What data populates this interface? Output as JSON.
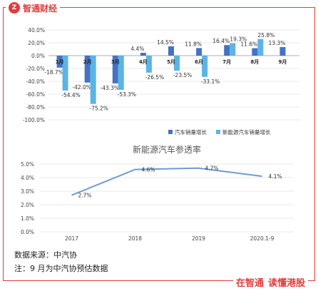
{
  "header": {
    "logo_mark": "Z",
    "brand": "智通财经"
  },
  "chart_data": [
    {
      "type": "bar",
      "title": "",
      "categories": [
        "1月",
        "2月",
        "3月",
        "4月",
        "5月",
        "6月",
        "7月",
        "8月",
        "9月"
      ],
      "series": [
        {
          "name": "汽车销量增长",
          "color": "#4472c4",
          "values": [
            -18.7,
            -42.0,
            -43.3,
            4.4,
            14.5,
            11.8,
            16.4,
            11.6,
            13.3
          ],
          "labels": [
            "-18.7%",
            "-42.0%",
            "-43.3%",
            "4.4%",
            "14.5%",
            "11.8%",
            "16.4%",
            "11.6%",
            "13.3%"
          ]
        },
        {
          "name": "新能源汽车销量增长",
          "color": "#5bb4e5",
          "values": [
            -54.4,
            -75.2,
            -53.3,
            -26.5,
            -23.5,
            -33.1,
            19.3,
            25.8,
            null
          ],
          "labels": [
            "-54.4%",
            "-75.2%",
            "-53.3%",
            "-26.5%",
            "-23.5%",
            "-33.1%",
            "19.3%",
            "25.8%",
            ""
          ]
        }
      ],
      "ylim": [
        -100,
        40
      ],
      "yticks": [
        "40.0%",
        "20.0%",
        "0.0%",
        "-20.0%",
        "-40.0%",
        "-60.0%",
        "-80.0%",
        "-100.0%"
      ],
      "grid": true,
      "legend": "bottom-right"
    },
    {
      "type": "line",
      "title": "新能源汽车参透率",
      "categories": [
        "2017",
        "2018",
        "2019",
        "2020.1-9"
      ],
      "series": [
        {
          "name": "",
          "color": "#6f9bd1",
          "values": [
            2.7,
            4.6,
            4.7,
            4.1
          ],
          "labels": [
            "2.7%",
            "4.6%",
            "4.7%",
            "4.1%"
          ]
        }
      ],
      "ylim": [
        0,
        5
      ],
      "yticks": [
        "5.0%",
        "4.0%",
        "3.0%",
        "2.0%",
        "1.0%",
        "0.0%"
      ],
      "grid": true
    }
  ],
  "notes": {
    "source": "数据来源：中汽协",
    "footnote": "注：9 月为中汽协预估数据"
  },
  "footer": {
    "slogan_left": "在智通",
    "slogan_right": "读懂港股"
  }
}
